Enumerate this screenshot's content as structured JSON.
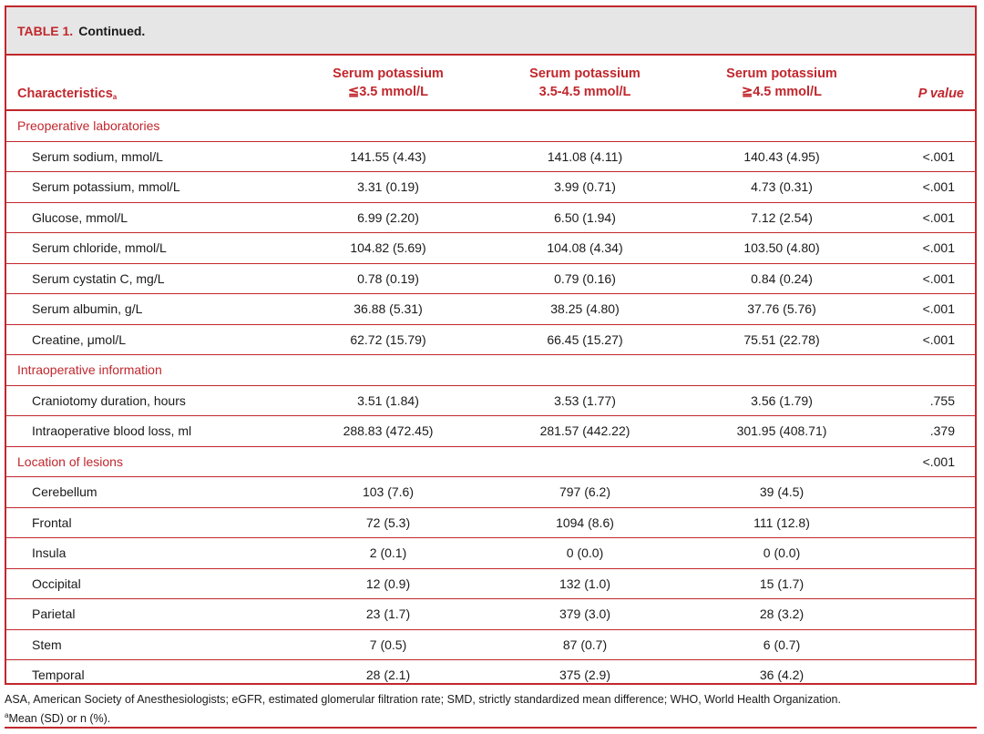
{
  "table": {
    "label": "TABLE 1.",
    "caption": "Continued.",
    "columns": {
      "characteristics": "Characteristics",
      "characteristics_sup": "a",
      "group1_line1": "Serum potassium",
      "group1_line2": "≦3.5 mmol/L",
      "group2_line1": "Serum potassium",
      "group2_line2": "3.5-4.5 mmol/L",
      "group3_line1": "Serum potassium",
      "group3_line2": "≧4.5 mmol/L",
      "p_value": "P value"
    },
    "rows": [
      {
        "section": true,
        "label": "Preoperative laboratories",
        "g1": "",
        "g2": "",
        "g3": "",
        "p": ""
      },
      {
        "label": "Serum sodium, mmol/L",
        "g1": "141.55 (4.43)",
        "g2": "141.08 (4.11)",
        "g3": "140.43 (4.95)",
        "p": "<.001"
      },
      {
        "label": "Serum potassium, mmol/L",
        "g1": "3.31 (0.19)",
        "g2": "3.99 (0.71)",
        "g3": "4.73 (0.31)",
        "p": "<.001"
      },
      {
        "label": "Glucose, mmol/L",
        "g1": "6.99 (2.20)",
        "g2": "6.50 (1.94)",
        "g3": "7.12 (2.54)",
        "p": "<.001"
      },
      {
        "label": "Serum chloride, mmol/L",
        "g1": "104.82 (5.69)",
        "g2": "104.08 (4.34)",
        "g3": "103.50 (4.80)",
        "p": "<.001"
      },
      {
        "label": "Serum cystatin C, mg/L",
        "g1": "0.78 (0.19)",
        "g2": "0.79 (0.16)",
        "g3": "0.84 (0.24)",
        "p": "<.001"
      },
      {
        "label": "Serum albumin, g/L",
        "g1": "36.88 (5.31)",
        "g2": "38.25 (4.80)",
        "g3": "37.76 (5.76)",
        "p": "<.001"
      },
      {
        "label": "Creatine, μmol/L",
        "g1": "62.72 (15.79)",
        "g2": "66.45 (15.27)",
        "g3": "75.51 (22.78)",
        "p": "<.001"
      },
      {
        "section": true,
        "label": "Intraoperative information",
        "g1": "",
        "g2": "",
        "g3": "",
        "p": ""
      },
      {
        "label": "Craniotomy duration, hours",
        "g1": "3.51 (1.84)",
        "g2": "3.53 (1.77)",
        "g3": "3.56 (1.79)",
        "p": ".755"
      },
      {
        "label": "Intraoperative blood loss, ml",
        "g1": "288.83 (472.45)",
        "g2": "281.57 (442.22)",
        "g3": "301.95 (408.71)",
        "p": ".379"
      },
      {
        "section": true,
        "label": "Location of lesions",
        "g1": "",
        "g2": "",
        "g3": "",
        "p": "<.001"
      },
      {
        "label": "Cerebellum",
        "g1": "103 (7.6)",
        "g2": "797 (6.2)",
        "g3": "39 (4.5)",
        "p": ""
      },
      {
        "label": "Frontal",
        "g1": "72 (5.3)",
        "g2": "1094 (8.6)",
        "g3": "111 (12.8)",
        "p": ""
      },
      {
        "label": "Insula",
        "g1": "2 (0.1)",
        "g2": "0 (0.0)",
        "g3": "0 (0.0)",
        "p": ""
      },
      {
        "label": "Occipital",
        "g1": "12 (0.9)",
        "g2": "132 (1.0)",
        "g3": "15 (1.7)",
        "p": ""
      },
      {
        "label": "Parietal",
        "g1": "23 (1.7)",
        "g2": "379 (3.0)",
        "g3": "28 (3.2)",
        "p": ""
      },
      {
        "label": "Stem",
        "g1": "7 (0.5)",
        "g2": "87 (0.7)",
        "g3": "6 (0.7)",
        "p": ""
      },
      {
        "label": "Temporal",
        "g1": "28 (2.1)",
        "g2": "375 (2.9)",
        "g3": "36 (4.2)",
        "p": ""
      }
    ]
  },
  "footnotes": {
    "abbreviations": "ASA, American Society of Anesthesiologists; eGFR, estimated glomerular filtration rate; SMD, strictly standardized mean difference; WHO, World Health Organization.",
    "note_marker": "a",
    "note_text": "Mean (SD) or n (%)."
  },
  "colors": {
    "accent": "#c1272d",
    "caption_bg": "#e6e6e6",
    "text": "#1a1a1a"
  }
}
